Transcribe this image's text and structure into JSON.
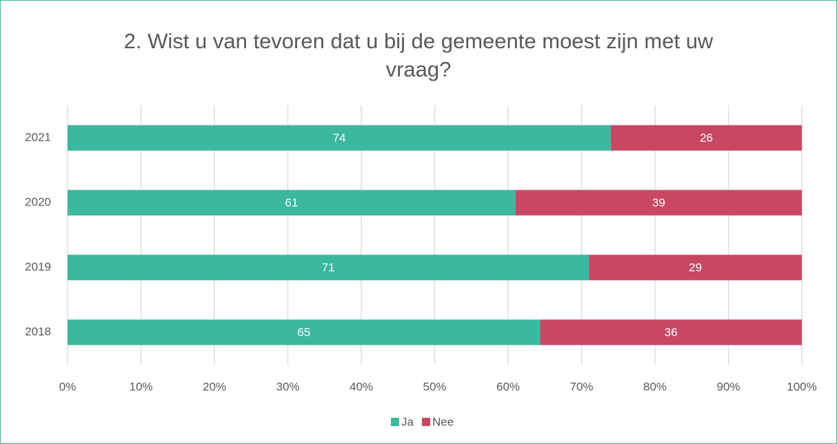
{
  "chart_data": {
    "type": "bar",
    "orientation": "horizontal",
    "stack": "percent",
    "title": "2. Wist u van tevoren dat u bij de gemeente moest zijn met uw vraag?",
    "categories": [
      "2021",
      "2020",
      "2019",
      "2018"
    ],
    "series": [
      {
        "name": "Ja",
        "color": "#3bb89e",
        "values": [
          74,
          61,
          71,
          65
        ]
      },
      {
        "name": "Nee",
        "color": "#c84864",
        "values": [
          26,
          39,
          29,
          36
        ]
      }
    ],
    "xlim": [
      0,
      100
    ],
    "xticks": [
      {
        "value": 0,
        "label": "0%"
      },
      {
        "value": 10,
        "label": "10%"
      },
      {
        "value": 20,
        "label": "20%"
      },
      {
        "value": 30,
        "label": "30%"
      },
      {
        "value": 40,
        "label": "40%"
      },
      {
        "value": 50,
        "label": "50%"
      },
      {
        "value": 60,
        "label": "60%"
      },
      {
        "value": 70,
        "label": "70%"
      },
      {
        "value": 80,
        "label": "80%"
      },
      {
        "value": 90,
        "label": "90%"
      },
      {
        "value": 100,
        "label": "100%"
      }
    ],
    "grid": true,
    "legend": "bottom"
  }
}
